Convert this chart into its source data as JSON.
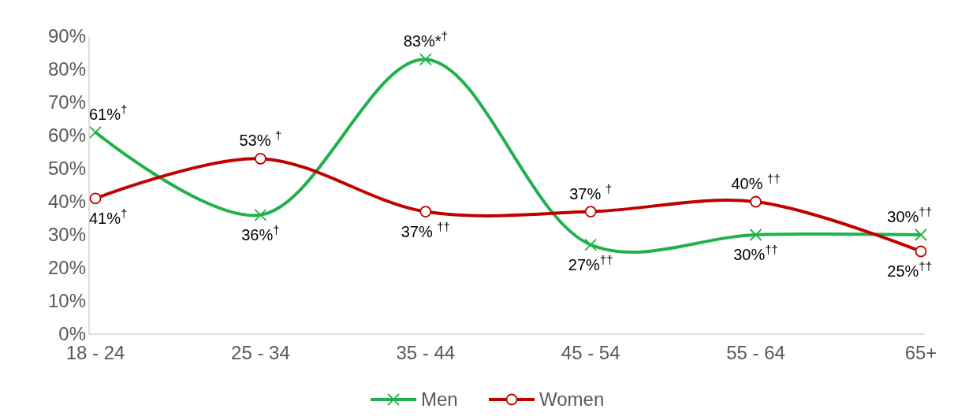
{
  "chart_data": {
    "type": "line",
    "categories": [
      "18 - 24",
      "25 - 34",
      "35 - 44",
      "45 - 54",
      "55 - 64",
      "65+"
    ],
    "series": [
      {
        "name": "Men",
        "color": "#1fb24a",
        "marker": "cross",
        "values": [
          61,
          36,
          83,
          27,
          30,
          30
        ],
        "value_labels": [
          "61%$^{†}$",
          "36%$^{†}$",
          "83%*$^{†}$",
          "27%$^{††}$",
          "30%$^{††}$",
          "30%$^{††}$"
        ]
      },
      {
        "name": "Women",
        "color": "#c00000",
        "marker": "circle",
        "values": [
          41,
          53,
          37,
          37,
          40,
          25
        ],
        "value_labels": [
          "41%$^{†}$",
          "53% $^{†}$",
          "37% $^{††}$",
          "37% $^{†}$",
          "40% $^{††}$",
          "25%$^{††}$"
        ]
      }
    ],
    "ylim": [
      0,
      90
    ],
    "yticks": [
      {
        "value": 0,
        "label": "0%"
      },
      {
        "value": 10,
        "label": "10%"
      },
      {
        "value": 20,
        "label": "20%"
      },
      {
        "value": 30,
        "label": "30%"
      },
      {
        "value": 40,
        "label": "40%"
      },
      {
        "value": 50,
        "label": "50%"
      },
      {
        "value": 60,
        "label": "60%"
      },
      {
        "value": 70,
        "label": "70%"
      },
      {
        "value": 80,
        "label": "80%"
      },
      {
        "value": 90,
        "label": "90%"
      }
    ],
    "legend": "bottom",
    "grid": false
  }
}
